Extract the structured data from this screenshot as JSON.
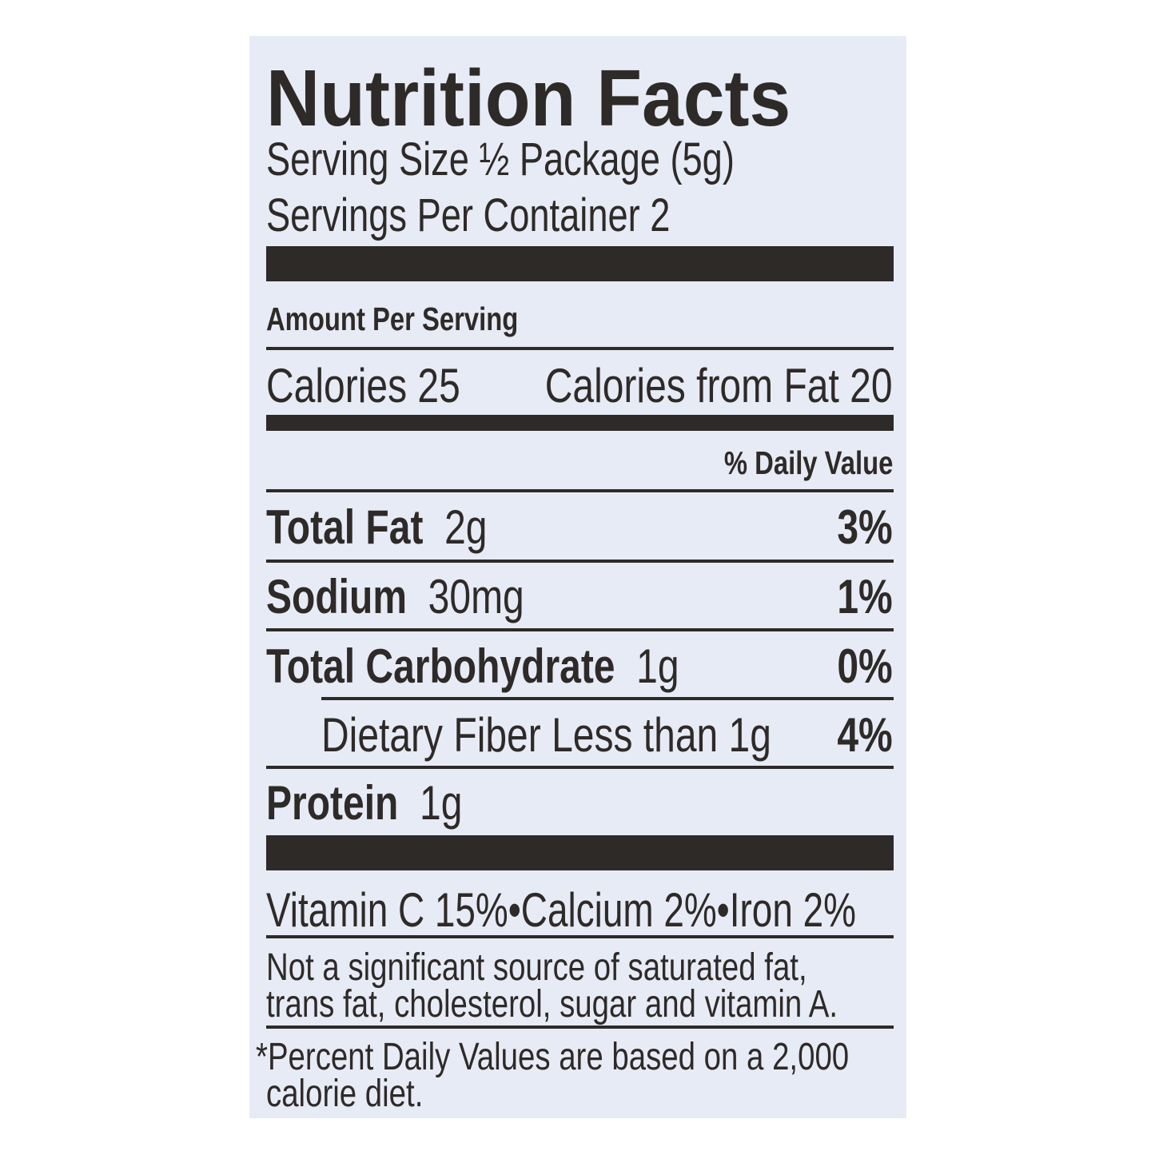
{
  "title": "Nutrition Facts",
  "serving_size": "Serving Size ½ Package (5g)",
  "servings_per_container": "Servings Per Container  2",
  "amount_per_serving": "Amount Per Serving",
  "calories": "Calories 25",
  "calories_from_fat": "Calories from Fat 20",
  "daily_value_header": "% Daily Value",
  "nutrients": [
    {
      "name": "Total Fat",
      "amount": "2g",
      "dv": "3%"
    },
    {
      "name": "Sodium",
      "amount": "30mg",
      "dv": "1%"
    },
    {
      "name": "Total Carbohydrate",
      "amount": "1g",
      "dv": "0%"
    },
    {
      "name": "Dietary Fiber Less than 1g",
      "amount": "",
      "dv": "4%"
    },
    {
      "name": "Protein",
      "amount": "1g",
      "dv": ""
    }
  ],
  "vitamins": "Vitamin C 15%•Calcium 2%•Iron 2%",
  "not_significant": [
    "Not a significant source of saturated fat,",
    "trans fat, cholesterol, sugar and vitamin A."
  ],
  "footnote": [
    "*Percent Daily Values are based on a 2,000",
    "calorie diet."
  ],
  "colors": {
    "background": "#e7ebf5",
    "ink": "#2e2a28"
  }
}
